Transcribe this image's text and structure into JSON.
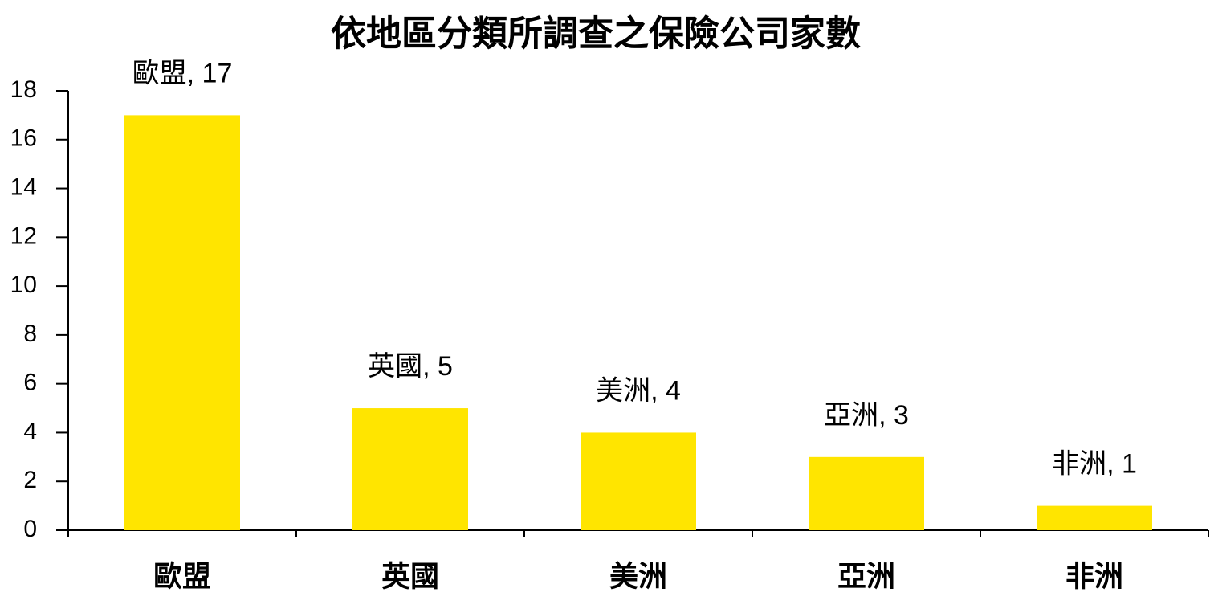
{
  "chart_data": {
    "type": "bar",
    "title": "依地區分類所調查之保險公司家數",
    "categories": [
      "歐盟",
      "英國",
      "美洲",
      "亞洲",
      "非洲"
    ],
    "values": [
      17,
      5,
      4,
      3,
      1
    ],
    "value_labels": [
      "歐盟, 17",
      "英國, 5",
      "美洲, 4",
      "亞洲, 3",
      "非洲, 1"
    ],
    "color": "#ffe500",
    "ylim": [
      0,
      18
    ],
    "yticks": [
      0,
      2,
      4,
      6,
      8,
      10,
      12,
      14,
      16,
      18
    ],
    "grid": false
  }
}
